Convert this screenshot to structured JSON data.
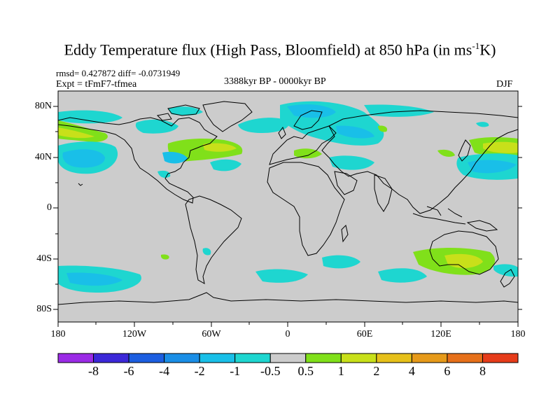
{
  "title": {
    "main": "Eddy Temperature flux (High Pass, Bloomfield) at 850 hPa (in ms",
    "sup": "-1",
    "tail": "K)"
  },
  "stats": {
    "rmsd_line": "rmsd= 0.427872 diff= -0.0731949",
    "expt_line": "Expt = tFmF7-tfmea"
  },
  "period": "3388kyr BP - 0000kyr BP",
  "season": "DJF",
  "lat_labels": [
    "80N",
    "40N",
    "0",
    "40S",
    "80S"
  ],
  "lon_labels": [
    "180",
    "120W",
    "60W",
    "0",
    "60E",
    "120E",
    "180"
  ],
  "colorbar": {
    "colors": [
      "#9b2be6",
      "#3c28d8",
      "#1c5ee0",
      "#1a8ee6",
      "#19bfe8",
      "#1ed6d0",
      "#cccccc",
      "#80e01a",
      "#c8e01a",
      "#e6c01a",
      "#e69a1a",
      "#e6701a",
      "#e63c1a"
    ],
    "labels": [
      "-8",
      "-6",
      "-4",
      "-2",
      "-1",
      "-0.5",
      "0.5",
      "1",
      "2",
      "4",
      "6",
      "8"
    ]
  },
  "map": {
    "ocean_fill": "#cccccc",
    "coast_color": "#000000"
  }
}
